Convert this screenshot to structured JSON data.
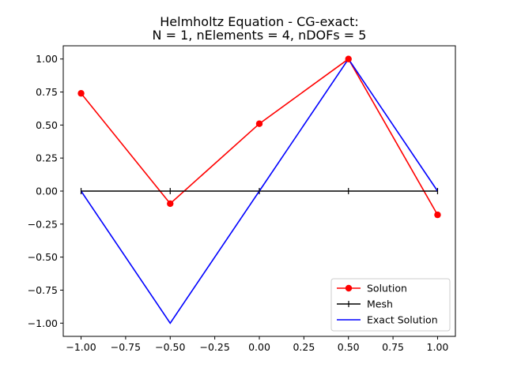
{
  "chart_data": {
    "type": "line",
    "title": "Helmholtz Equation - CG-exact:",
    "subtitle": "N = 1,  nElements = 4,  nDOFs = 5",
    "xlabel": "",
    "ylabel": "",
    "xlim": [
      -1.1,
      1.1
    ],
    "ylim": [
      -1.1,
      1.1
    ],
    "grid": false,
    "legend_position": "lower-right",
    "xticks": [
      -1.0,
      -0.75,
      -0.5,
      -0.25,
      0.0,
      0.25,
      0.5,
      0.75,
      1.0
    ],
    "xtick_labels": [
      "−1.00",
      "−0.75",
      "−0.50",
      "−0.25",
      "0.00",
      "0.25",
      "0.50",
      "0.75",
      "1.00"
    ],
    "yticks": [
      1.0,
      0.75,
      0.5,
      0.25,
      0.0,
      -0.25,
      -0.5,
      -0.75,
      -1.0
    ],
    "ytick_labels": [
      "1.00",
      "0.75",
      "0.50",
      "0.25",
      "0.00",
      "−0.25",
      "−0.50",
      "−0.75",
      "−1.00"
    ],
    "series": [
      {
        "name": "Solution",
        "color": "#ff0000",
        "marker": "circle",
        "x": [
          -1.0,
          -0.5,
          0.0,
          0.5,
          1.0
        ],
        "y": [
          0.74,
          -0.095,
          0.51,
          1.0,
          -0.18
        ]
      },
      {
        "name": "Mesh",
        "color": "#000000",
        "marker": "plus",
        "x": [
          -1.0,
          -0.5,
          0.0,
          0.5,
          1.0
        ],
        "y": [
          0.0,
          0.0,
          0.0,
          0.0,
          0.0
        ]
      },
      {
        "name": "Exact Solution",
        "color": "#0000ff",
        "marker": "none",
        "x": [
          -1.0,
          -0.5,
          0.0,
          0.5,
          1.0
        ],
        "y": [
          0.0,
          -1.0,
          0.0,
          1.0,
          0.0
        ]
      }
    ]
  }
}
